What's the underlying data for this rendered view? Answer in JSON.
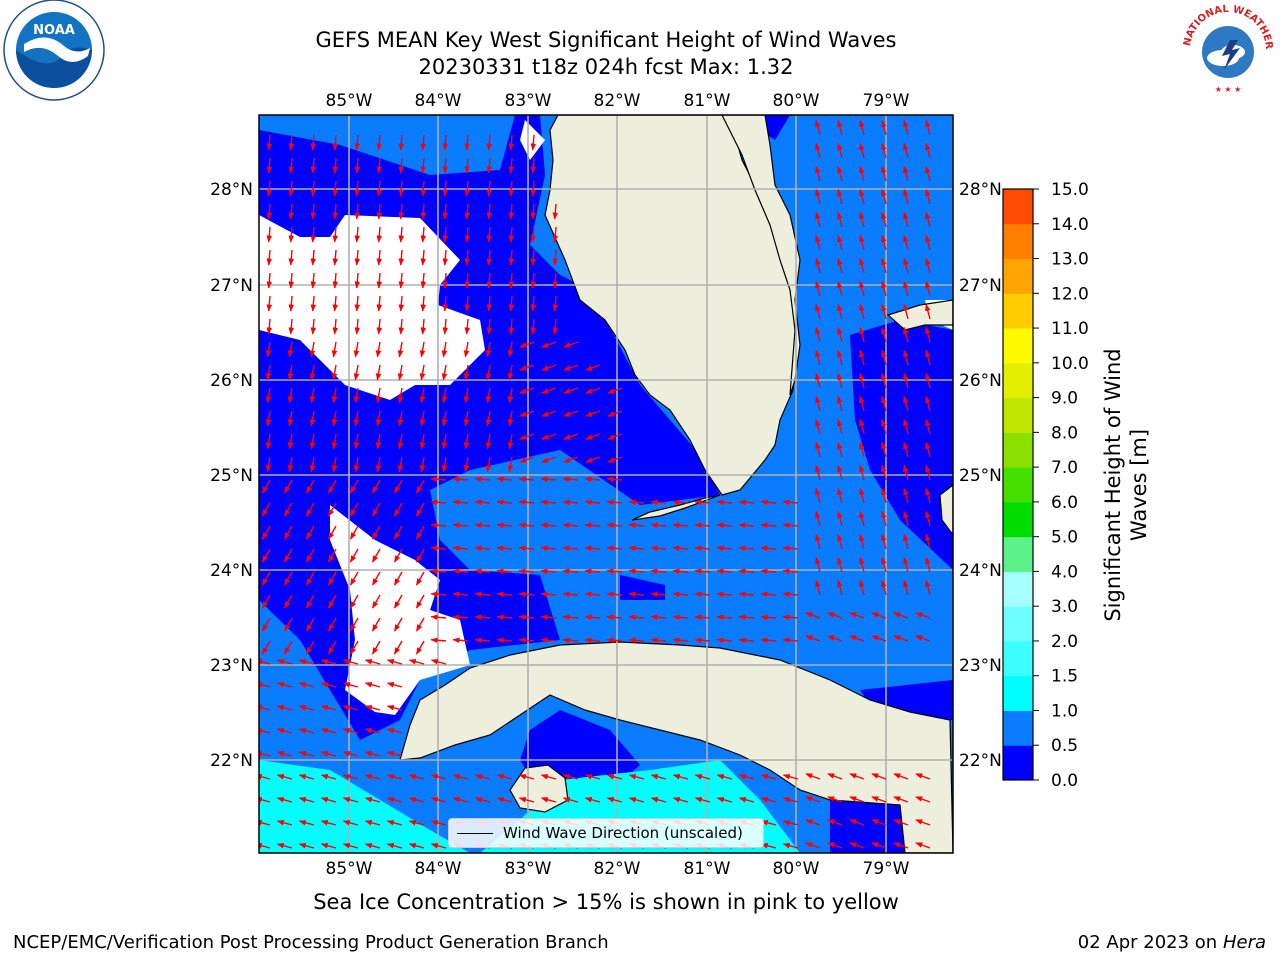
{
  "title": {
    "line1": "GEFS MEAN Key West Significant Height of Wind Waves",
    "line2": "20230331 t18z 024h fcst   Max: 1.32"
  },
  "axes": {
    "lon_labels": [
      "85°W",
      "84°W",
      "83°W",
      "82°W",
      "81°W",
      "80°W",
      "79°W"
    ],
    "lat_labels": [
      "28°N",
      "27°N",
      "26°N",
      "25°N",
      "24°N",
      "23°N",
      "22°N"
    ]
  },
  "legend": {
    "label": "Wind Wave Direction (unscaled)"
  },
  "colorbar": {
    "label": "Significant Height of Wind Waves [m]",
    "ticks": [
      "0.0",
      "0.5",
      "1.0",
      "1.5",
      "2.0",
      "3.0",
      "4.0",
      "5.0",
      "6.0",
      "7.0",
      "8.0",
      "9.0",
      "10.0",
      "11.0",
      "12.0",
      "13.0",
      "14.0",
      "15.0"
    ],
    "colors": [
      "#0000ff",
      "#0080ff",
      "#00ffff",
      "#40ffff",
      "#80ffff",
      "#a0ffff",
      "#40ff80",
      "#00e000",
      "#40e000",
      "#80e000",
      "#c0e000",
      "#e0e000",
      "#ffff00",
      "#ffd000",
      "#ffa000",
      "#ff8000",
      "#ff4000",
      "#ff0000"
    ],
    "bin_colors": [
      "#0000ff",
      "#0a7cff",
      "#00ffff",
      "#3cffff",
      "#6cffff",
      "#a6ffff",
      "#5cf28a",
      "#00dc00",
      "#46e000",
      "#8ce000",
      "#c0e600",
      "#e4ee00",
      "#fffa00",
      "#ffcc00",
      "#ffa400",
      "#ff8000",
      "#ff4c00",
      "#ff1a00"
    ]
  },
  "caption": "Sea Ice Concentration > 15% is shown in pink to yellow",
  "footer": {
    "left": "NCEP/EMC/Verification Post Processing Product Generation Branch",
    "right_date": "02 Apr 2023 on",
    "right_host": "Hera"
  },
  "logos": {
    "left": "NOAA",
    "right": "NATIONAL WEATHER SERVICE"
  },
  "colors": {
    "land": "#eeeedd",
    "arrow": "#ff0000",
    "grid": "#b0b0b0"
  }
}
